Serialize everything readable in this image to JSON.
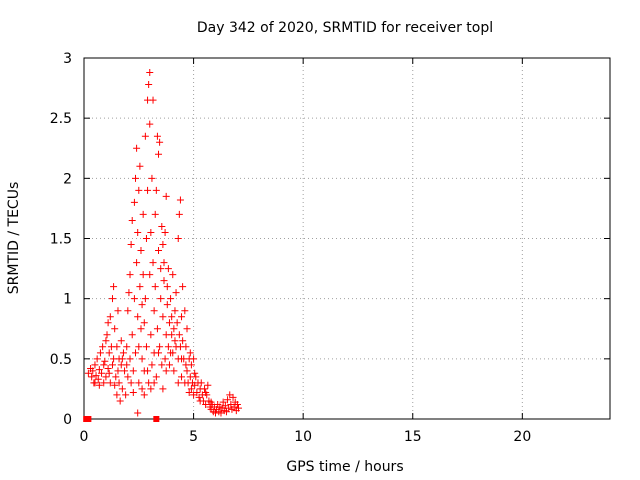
{
  "chart_data": {
    "type": "scatter",
    "title": "Day 342 of 2020, SRMTID for receiver topl",
    "xlabel": "GPS time / hours",
    "ylabel": "SRMTID / TECUs",
    "xlim": [
      0,
      24
    ],
    "ylim": [
      0,
      3
    ],
    "xticks": [
      0,
      5,
      10,
      15,
      20
    ],
    "yticks": [
      0,
      0.5,
      1,
      1.5,
      2,
      2.5,
      3
    ],
    "xtick_labels": [
      "0",
      "5",
      "10",
      "15",
      "20"
    ],
    "ytick_labels": [
      "0",
      "0.5",
      "1",
      "1.5",
      "2",
      "2.5",
      "3"
    ],
    "grid": true,
    "marker": "+",
    "color": "#ff0000",
    "square_markers": [
      {
        "x": 0.1,
        "y": 0.0
      },
      {
        "x": 0.2,
        "y": 0.0
      },
      {
        "x": 3.3,
        "y": 0.0
      }
    ],
    "series": [
      {
        "name": "SRMTID",
        "points": [
          [
            0.2,
            0.38
          ],
          [
            0.3,
            0.42
          ],
          [
            0.35,
            0.35
          ],
          [
            0.4,
            0.4
          ],
          [
            0.45,
            0.3
          ],
          [
            0.5,
            0.45
          ],
          [
            0.55,
            0.36
          ],
          [
            0.6,
            0.5
          ],
          [
            0.65,
            0.33
          ],
          [
            0.7,
            0.41
          ],
          [
            0.75,
            0.55
          ],
          [
            0.8,
            0.38
          ],
          [
            0.85,
            0.6
          ],
          [
            0.9,
            0.3
          ],
          [
            0.95,
            0.48
          ],
          [
            1.0,
            0.65
          ],
          [
            1.0,
            0.35
          ],
          [
            1.05,
            0.7
          ],
          [
            1.1,
            0.42
          ],
          [
            1.1,
            0.8
          ],
          [
            1.15,
            0.55
          ],
          [
            1.2,
            0.3
          ],
          [
            1.2,
            0.85
          ],
          [
            1.25,
            0.6
          ],
          [
            1.3,
            0.45
          ],
          [
            1.3,
            1.0
          ],
          [
            1.35,
            1.1
          ],
          [
            1.35,
            0.5
          ],
          [
            1.4,
            0.75
          ],
          [
            1.45,
            0.35
          ],
          [
            1.5,
            0.6
          ],
          [
            1.5,
            0.2
          ],
          [
            1.55,
            0.9
          ],
          [
            1.6,
            0.3
          ],
          [
            1.6,
            0.5
          ],
          [
            1.65,
            0.15
          ],
          [
            1.7,
            0.45
          ],
          [
            1.7,
            0.65
          ],
          [
            1.75,
            0.25
          ],
          [
            1.8,
            0.55
          ],
          [
            1.85,
            0.4
          ],
          [
            1.9,
            0.2
          ],
          [
            1.95,
            0.6
          ],
          [
            2.0,
            0.35
          ],
          [
            2.0,
            0.9
          ],
          [
            2.05,
            1.05
          ],
          [
            2.1,
            0.5
          ],
          [
            2.1,
            1.2
          ],
          [
            2.15,
            1.45
          ],
          [
            2.2,
            0.7
          ],
          [
            2.2,
            1.65
          ],
          [
            2.25,
            0.4
          ],
          [
            2.3,
            1.0
          ],
          [
            2.3,
            1.8
          ],
          [
            2.35,
            0.55
          ],
          [
            2.35,
            2.0
          ],
          [
            2.4,
            1.3
          ],
          [
            2.4,
            2.25
          ],
          [
            2.45,
            0.85
          ],
          [
            2.45,
            1.55
          ],
          [
            2.5,
            0.6
          ],
          [
            2.5,
            1.9
          ],
          [
            2.55,
            1.1
          ],
          [
            2.55,
            2.1
          ],
          [
            2.6,
            0.75
          ],
          [
            2.6,
            1.4
          ],
          [
            2.65,
            0.5
          ],
          [
            2.65,
            0.95
          ],
          [
            2.7,
            1.2
          ],
          [
            2.7,
            1.7
          ],
          [
            2.75,
            0.4
          ],
          [
            2.75,
            0.8
          ],
          [
            2.8,
            1.0
          ],
          [
            2.8,
            2.35
          ],
          [
            2.85,
            0.6
          ],
          [
            2.85,
            1.5
          ],
          [
            2.9,
            2.65
          ],
          [
            2.9,
            1.9
          ],
          [
            2.95,
            0.3
          ],
          [
            2.95,
            2.78
          ],
          [
            3.0,
            2.88
          ],
          [
            3.0,
            1.2
          ],
          [
            3.0,
            2.45
          ],
          [
            3.05,
            0.7
          ],
          [
            3.05,
            1.55
          ],
          [
            3.1,
            2.0
          ],
          [
            3.1,
            0.45
          ],
          [
            3.15,
            1.3
          ],
          [
            3.15,
            2.65
          ],
          [
            3.2,
            0.9
          ],
          [
            3.2,
            0.55
          ],
          [
            3.25,
            1.1
          ],
          [
            3.25,
            1.7
          ],
          [
            3.3,
            0.35
          ],
          [
            3.3,
            1.9
          ],
          [
            3.35,
            2.35
          ],
          [
            3.35,
            0.75
          ],
          [
            3.4,
            2.2
          ],
          [
            3.4,
            1.4
          ],
          [
            3.45,
            2.3
          ],
          [
            3.45,
            0.6
          ],
          [
            3.5,
            1.25
          ],
          [
            3.5,
            1.0
          ],
          [
            3.55,
            1.6
          ],
          [
            3.55,
            0.45
          ],
          [
            3.6,
            1.45
          ],
          [
            3.6,
            0.85
          ],
          [
            3.65,
            1.15
          ],
          [
            3.65,
            1.3
          ],
          [
            3.7,
            0.5
          ],
          [
            3.7,
            1.55
          ],
          [
            3.75,
            0.7
          ],
          [
            3.75,
            1.85
          ],
          [
            3.8,
            0.95
          ],
          [
            3.8,
            1.1
          ],
          [
            3.85,
            0.6
          ],
          [
            3.85,
            1.25
          ],
          [
            3.9,
            0.8
          ],
          [
            3.9,
            0.45
          ],
          [
            3.95,
            1.0
          ],
          [
            4.0,
            0.7
          ],
          [
            4.0,
            0.85
          ],
          [
            4.05,
            0.55
          ],
          [
            4.05,
            1.2
          ],
          [
            4.1,
            0.75
          ],
          [
            4.1,
            0.4
          ],
          [
            4.15,
            0.9
          ],
          [
            4.2,
            0.6
          ],
          [
            4.2,
            1.05
          ],
          [
            4.25,
            0.8
          ],
          [
            4.3,
            0.5
          ],
          [
            4.3,
            1.5
          ],
          [
            4.35,
            0.7
          ],
          [
            4.35,
            1.7
          ],
          [
            4.4,
            0.6
          ],
          [
            4.4,
            1.82
          ],
          [
            4.45,
            0.85
          ],
          [
            4.45,
            0.35
          ],
          [
            4.5,
            0.65
          ],
          [
            4.5,
            1.1
          ],
          [
            4.55,
            0.5
          ],
          [
            4.6,
            0.9
          ],
          [
            4.6,
            0.3
          ],
          [
            4.65,
            0.6
          ],
          [
            4.7,
            0.4
          ],
          [
            4.7,
            0.75
          ],
          [
            4.75,
            0.3
          ],
          [
            4.8,
            0.5
          ],
          [
            4.8,
            0.22
          ],
          [
            4.85,
            0.35
          ],
          [
            4.9,
            0.45
          ],
          [
            4.9,
            0.25
          ],
          [
            4.95,
            0.3
          ],
          [
            5.0,
            0.5
          ],
          [
            5.0,
            0.2
          ],
          [
            5.05,
            0.28
          ],
          [
            5.1,
            0.35
          ],
          [
            5.15,
            0.22
          ],
          [
            5.2,
            0.3
          ],
          [
            5.25,
            0.18
          ],
          [
            5.3,
            0.25
          ],
          [
            5.35,
            0.3
          ],
          [
            5.4,
            0.2
          ],
          [
            5.45,
            0.15
          ],
          [
            5.5,
            0.25
          ],
          [
            5.55,
            0.12
          ],
          [
            5.6,
            0.2
          ],
          [
            5.65,
            0.28
          ],
          [
            5.7,
            0.15
          ],
          [
            5.75,
            0.1
          ],
          [
            5.8,
            0.08
          ],
          [
            5.85,
            0.12
          ],
          [
            5.9,
            0.06
          ],
          [
            5.95,
            0.1
          ],
          [
            6.0,
            0.05
          ],
          [
            6.05,
            0.08
          ],
          [
            6.1,
            0.12
          ],
          [
            6.15,
            0.06
          ],
          [
            6.2,
            0.1
          ],
          [
            6.25,
            0.05
          ],
          [
            6.3,
            0.09
          ],
          [
            6.35,
            0.14
          ],
          [
            6.4,
            0.07
          ],
          [
            6.45,
            0.11
          ],
          [
            6.5,
            0.06
          ],
          [
            6.55,
            0.16
          ],
          [
            6.6,
            0.09
          ],
          [
            6.65,
            0.2
          ],
          [
            6.7,
            0.12
          ],
          [
            6.75,
            0.08
          ],
          [
            6.8,
            0.18
          ],
          [
            6.85,
            0.1
          ],
          [
            6.9,
            0.14
          ],
          [
            6.95,
            0.07
          ],
          [
            7.0,
            0.12
          ],
          [
            7.05,
            0.09
          ],
          [
            0.5,
            0.3
          ],
          [
            0.7,
            0.28
          ],
          [
            0.9,
            0.45
          ],
          [
            1.15,
            0.38
          ],
          [
            1.4,
            0.28
          ],
          [
            1.55,
            0.4
          ],
          [
            1.75,
            0.5
          ],
          [
            1.95,
            0.45
          ],
          [
            2.15,
            0.3
          ],
          [
            2.25,
            0.22
          ],
          [
            2.45,
            0.05
          ],
          [
            2.5,
            0.3
          ],
          [
            2.65,
            0.25
          ],
          [
            2.75,
            0.2
          ],
          [
            2.9,
            0.4
          ],
          [
            3.05,
            0.25
          ],
          [
            3.2,
            0.3
          ],
          [
            3.4,
            0.55
          ],
          [
            3.6,
            0.25
          ],
          [
            3.75,
            0.4
          ],
          [
            3.95,
            0.55
          ],
          [
            4.15,
            0.65
          ],
          [
            4.3,
            0.3
          ],
          [
            4.45,
            0.5
          ],
          [
            4.65,
            0.45
          ],
          [
            4.85,
            0.55
          ],
          [
            5.05,
            0.38
          ],
          [
            5.3,
            0.15
          ],
          [
            5.55,
            0.22
          ],
          [
            5.8,
            0.14
          ]
        ]
      }
    ]
  }
}
